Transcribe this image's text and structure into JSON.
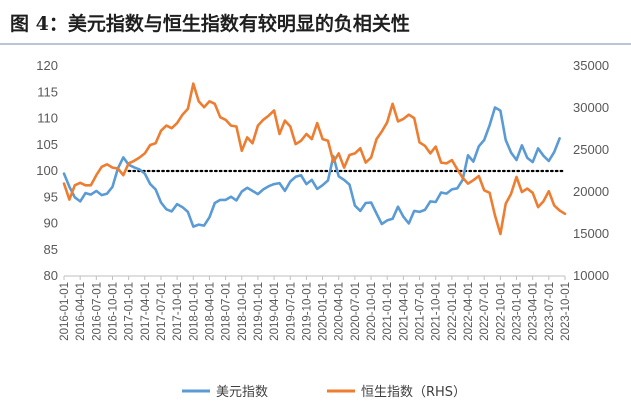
{
  "header": {
    "title": "图 4：美元指数与恒生指数有较明显的负相关性"
  },
  "colors": {
    "usd": "#5b9bd5",
    "hsi": "#ed7d31",
    "reference": "#000000",
    "axis": "#bfbfbf"
  },
  "chart_data": {
    "type": "line",
    "title": "",
    "xlabel": "",
    "ylabel": "",
    "y2label": "",
    "grid": false,
    "legend_position": "bottom",
    "x_ticks": [
      "2016-01-01",
      "2016-04-01",
      "2016-07-01",
      "2016-10-01",
      "2017-01-01",
      "2017-04-01",
      "2017-07-01",
      "2017-10-01",
      "2018-01-01",
      "2018-04-01",
      "2018-07-01",
      "2018-10-01",
      "2019-01-01",
      "2019-04-01",
      "2019-07-01",
      "2019-10-01",
      "2020-01-01",
      "2020-04-01",
      "2020-07-01",
      "2020-10-01",
      "2021-01-01",
      "2021-04-01",
      "2021-07-01",
      "2021-10-01",
      "2022-01-01",
      "2022-04-01",
      "2022-07-01",
      "2022-10-01",
      "2023-01-01",
      "2023-04-01",
      "2023-07-01",
      "2023-10-01"
    ],
    "y_left": {
      "min": 80,
      "max": 120,
      "ticks": [
        80,
        85,
        90,
        95,
        100,
        105,
        110,
        115,
        120
      ]
    },
    "y_right": {
      "min": 10000,
      "max": 35000,
      "ticks": [
        10000,
        15000,
        20000,
        25000,
        30000,
        35000
      ]
    },
    "reference_line": {
      "axis": "left",
      "value": 100,
      "x_start": "2017-01-01",
      "x_end": "2023-10-01",
      "style": "dotted"
    },
    "series": [
      {
        "name": "美元指数",
        "axis": "left",
        "points": [
          [
            "2016-01-01",
            99.5
          ],
          [
            "2016-02-01",
            97.0
          ],
          [
            "2016-03-01",
            95.0
          ],
          [
            "2016-04-01",
            94.2
          ],
          [
            "2016-05-01",
            95.8
          ],
          [
            "2016-06-01",
            95.5
          ],
          [
            "2016-07-01",
            96.2
          ],
          [
            "2016-08-01",
            95.4
          ],
          [
            "2016-09-01",
            95.7
          ],
          [
            "2016-10-01",
            97.0
          ],
          [
            "2016-11-01",
            100.5
          ],
          [
            "2016-12-01",
            102.6
          ],
          [
            "2017-01-01",
            101.2
          ],
          [
            "2017-02-01",
            100.7
          ],
          [
            "2017-03-01",
            100.3
          ],
          [
            "2017-04-01",
            99.5
          ],
          [
            "2017-05-01",
            97.5
          ],
          [
            "2017-06-01",
            96.5
          ],
          [
            "2017-07-01",
            94.0
          ],
          [
            "2017-08-01",
            92.7
          ],
          [
            "2017-09-01",
            92.3
          ],
          [
            "2017-10-01",
            93.7
          ],
          [
            "2017-11-01",
            93.1
          ],
          [
            "2017-12-01",
            92.2
          ],
          [
            "2018-01-01",
            89.4
          ],
          [
            "2018-02-01",
            89.8
          ],
          [
            "2018-03-01",
            89.6
          ],
          [
            "2018-04-01",
            91.2
          ],
          [
            "2018-05-01",
            93.9
          ],
          [
            "2018-06-01",
            94.5
          ],
          [
            "2018-07-01",
            94.5
          ],
          [
            "2018-08-01",
            95.1
          ],
          [
            "2018-09-01",
            94.4
          ],
          [
            "2018-10-01",
            96.1
          ],
          [
            "2018-11-01",
            96.8
          ],
          [
            "2018-12-01",
            96.2
          ],
          [
            "2019-01-01",
            95.6
          ],
          [
            "2019-02-01",
            96.5
          ],
          [
            "2019-03-01",
            97.1
          ],
          [
            "2019-04-01",
            97.5
          ],
          [
            "2019-05-01",
            97.7
          ],
          [
            "2019-06-01",
            96.2
          ],
          [
            "2019-07-01",
            98.0
          ],
          [
            "2019-08-01",
            98.9
          ],
          [
            "2019-09-01",
            99.2
          ],
          [
            "2019-10-01",
            97.5
          ],
          [
            "2019-11-01",
            98.3
          ],
          [
            "2019-12-01",
            96.6
          ],
          [
            "2020-01-01",
            97.3
          ],
          [
            "2020-02-01",
            98.2
          ],
          [
            "2020-03-01",
            102.8
          ],
          [
            "2020-04-01",
            99.0
          ],
          [
            "2020-05-01",
            98.3
          ],
          [
            "2020-06-01",
            97.4
          ],
          [
            "2020-07-01",
            93.4
          ],
          [
            "2020-08-01",
            92.4
          ],
          [
            "2020-09-01",
            93.9
          ],
          [
            "2020-10-01",
            94.0
          ],
          [
            "2020-11-01",
            91.9
          ],
          [
            "2020-12-01",
            89.9
          ],
          [
            "2021-01-01",
            90.6
          ],
          [
            "2021-02-01",
            90.9
          ],
          [
            "2021-03-01",
            93.2
          ],
          [
            "2021-04-01",
            91.3
          ],
          [
            "2021-05-01",
            90.0
          ],
          [
            "2021-06-01",
            92.4
          ],
          [
            "2021-07-01",
            92.2
          ],
          [
            "2021-08-01",
            92.6
          ],
          [
            "2021-09-01",
            94.2
          ],
          [
            "2021-10-01",
            94.1
          ],
          [
            "2021-11-01",
            95.9
          ],
          [
            "2021-12-01",
            95.7
          ],
          [
            "2022-01-01",
            96.5
          ],
          [
            "2022-02-01",
            96.7
          ],
          [
            "2022-03-01",
            98.3
          ],
          [
            "2022-04-01",
            103.0
          ],
          [
            "2022-05-01",
            101.8
          ],
          [
            "2022-06-01",
            104.7
          ],
          [
            "2022-07-01",
            105.9
          ],
          [
            "2022-08-01",
            108.7
          ],
          [
            "2022-09-01",
            112.1
          ],
          [
            "2022-10-01",
            111.5
          ],
          [
            "2022-11-01",
            105.9
          ],
          [
            "2022-12-01",
            103.5
          ],
          [
            "2023-01-01",
            102.1
          ],
          [
            "2023-02-01",
            104.9
          ],
          [
            "2023-03-01",
            102.5
          ],
          [
            "2023-04-01",
            101.7
          ],
          [
            "2023-05-01",
            104.3
          ],
          [
            "2023-06-01",
            102.9
          ],
          [
            "2023-07-01",
            101.9
          ],
          [
            "2023-08-01",
            103.6
          ],
          [
            "2023-09-01",
            106.2
          ]
        ]
      },
      {
        "name": "恒生指数（RHS）",
        "axis": "right",
        "points": [
          [
            "2016-01-01",
            21000
          ],
          [
            "2016-02-01",
            19100
          ],
          [
            "2016-03-01",
            20800
          ],
          [
            "2016-04-01",
            21100
          ],
          [
            "2016-05-01",
            20800
          ],
          [
            "2016-06-01",
            20800
          ],
          [
            "2016-07-01",
            22000
          ],
          [
            "2016-08-01",
            23000
          ],
          [
            "2016-09-01",
            23300
          ],
          [
            "2016-10-01",
            22900
          ],
          [
            "2016-11-01",
            22800
          ],
          [
            "2016-12-01",
            22000
          ],
          [
            "2017-01-01",
            23400
          ],
          [
            "2017-02-01",
            23700
          ],
          [
            "2017-03-01",
            24100
          ],
          [
            "2017-04-01",
            24600
          ],
          [
            "2017-05-01",
            25600
          ],
          [
            "2017-06-01",
            25800
          ],
          [
            "2017-07-01",
            27300
          ],
          [
            "2017-08-01",
            27900
          ],
          [
            "2017-09-01",
            27600
          ],
          [
            "2017-10-01",
            28200
          ],
          [
            "2017-11-01",
            29200
          ],
          [
            "2017-12-01",
            29900
          ],
          [
            "2018-01-01",
            32900
          ],
          [
            "2018-02-01",
            30800
          ],
          [
            "2018-03-01",
            30100
          ],
          [
            "2018-04-01",
            30800
          ],
          [
            "2018-05-01",
            30500
          ],
          [
            "2018-06-01",
            28900
          ],
          [
            "2018-07-01",
            28600
          ],
          [
            "2018-08-01",
            27900
          ],
          [
            "2018-09-01",
            27800
          ],
          [
            "2018-10-01",
            24900
          ],
          [
            "2018-11-01",
            26500
          ],
          [
            "2018-12-01",
            25800
          ],
          [
            "2019-01-01",
            27900
          ],
          [
            "2019-02-01",
            28600
          ],
          [
            "2019-03-01",
            29100
          ],
          [
            "2019-04-01",
            29700
          ],
          [
            "2019-05-01",
            26900
          ],
          [
            "2019-06-01",
            28500
          ],
          [
            "2019-07-01",
            27800
          ],
          [
            "2019-08-01",
            25700
          ],
          [
            "2019-09-01",
            26100
          ],
          [
            "2019-10-01",
            26900
          ],
          [
            "2019-11-01",
            26300
          ],
          [
            "2019-12-01",
            28200
          ],
          [
            "2020-01-01",
            26300
          ],
          [
            "2020-02-01",
            26100
          ],
          [
            "2020-03-01",
            23600
          ],
          [
            "2020-04-01",
            24600
          ],
          [
            "2020-05-01",
            22900
          ],
          [
            "2020-06-01",
            24400
          ],
          [
            "2020-07-01",
            24600
          ],
          [
            "2020-08-01",
            25200
          ],
          [
            "2020-09-01",
            23500
          ],
          [
            "2020-10-01",
            24100
          ],
          [
            "2020-11-01",
            26300
          ],
          [
            "2020-12-01",
            27200
          ],
          [
            "2021-01-01",
            28300
          ],
          [
            "2021-02-01",
            30500
          ],
          [
            "2021-03-01",
            28400
          ],
          [
            "2021-04-01",
            28700
          ],
          [
            "2021-05-01",
            29200
          ],
          [
            "2021-06-01",
            28800
          ],
          [
            "2021-07-01",
            25900
          ],
          [
            "2021-08-01",
            25500
          ],
          [
            "2021-09-01",
            24600
          ],
          [
            "2021-10-01",
            25400
          ],
          [
            "2021-11-01",
            23500
          ],
          [
            "2021-12-01",
            23400
          ],
          [
            "2022-01-01",
            23800
          ],
          [
            "2022-02-01",
            22700
          ],
          [
            "2022-03-01",
            21700
          ],
          [
            "2022-04-01",
            21000
          ],
          [
            "2022-05-01",
            21400
          ],
          [
            "2022-06-01",
            21900
          ],
          [
            "2022-07-01",
            20200
          ],
          [
            "2022-08-01",
            19900
          ],
          [
            "2022-09-01",
            17200
          ],
          [
            "2022-10-01",
            15000
          ],
          [
            "2022-11-01",
            18600
          ],
          [
            "2022-12-01",
            19800
          ],
          [
            "2023-01-01",
            21800
          ],
          [
            "2023-02-01",
            20000
          ],
          [
            "2023-03-01",
            20400
          ],
          [
            "2023-04-01",
            19900
          ],
          [
            "2023-05-01",
            18200
          ],
          [
            "2023-06-01",
            18900
          ],
          [
            "2023-07-01",
            20100
          ],
          [
            "2023-08-01",
            18400
          ],
          [
            "2023-09-01",
            17800
          ],
          [
            "2023-10-01",
            17400
          ]
        ]
      }
    ]
  }
}
